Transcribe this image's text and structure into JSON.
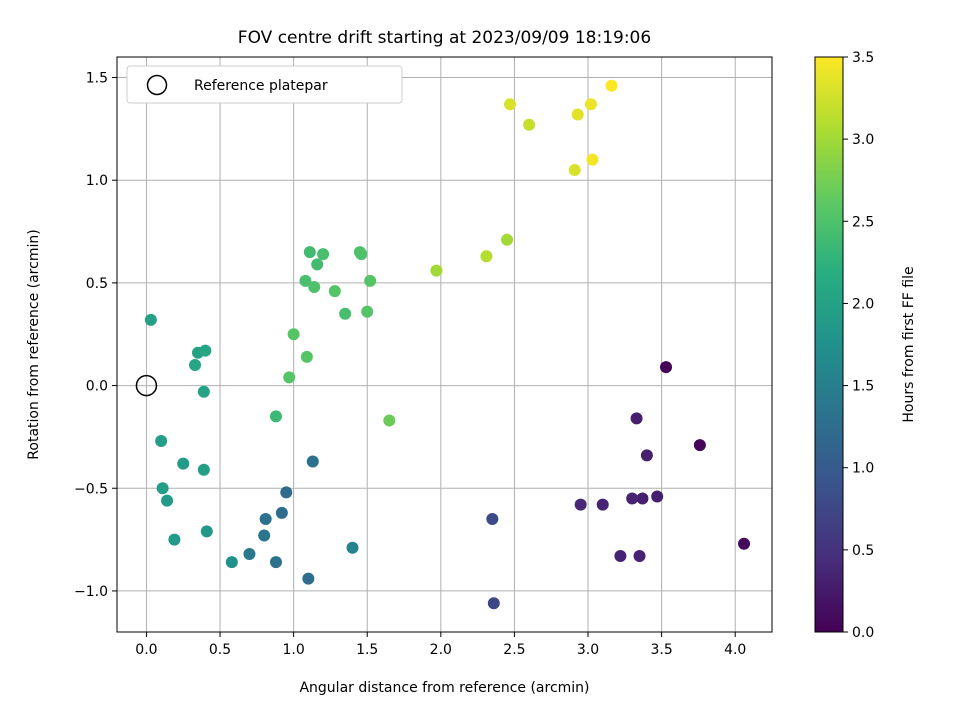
{
  "chart_data": {
    "type": "scatter",
    "title": "FOV centre drift starting at 2023/09/09 18:19:06",
    "xlabel": "Angular distance from reference (arcmin)",
    "ylabel": "Rotation from reference (arcmin)",
    "xlim": [
      -0.2,
      4.25
    ],
    "ylim": [
      -1.2,
      1.6
    ],
    "xticks": [
      0.0,
      0.5,
      1.0,
      1.5,
      2.0,
      2.5,
      3.0,
      3.5,
      4.0
    ],
    "xtick_labels": [
      "0.0",
      "0.5",
      "1.0",
      "1.5",
      "2.0",
      "2.5",
      "3.0",
      "3.5",
      "4.0"
    ],
    "yticks": [
      -1.0,
      -0.5,
      0.0,
      0.5,
      1.0,
      1.5
    ],
    "ytick_labels": [
      "−1.0",
      "−0.5",
      "0.0",
      "0.5",
      "1.0",
      "1.5"
    ],
    "grid": true,
    "legend": {
      "placement": "upper-left",
      "entries": [
        {
          "label": "Reference platepar",
          "marker": "open-circle"
        }
      ]
    },
    "reference_point": {
      "x": 0.0,
      "y": 0.0
    },
    "colorbar": {
      "label": "Hours from first FF file",
      "colormap": "viridis",
      "range": [
        0.0,
        3.5
      ],
      "ticks": [
        0.0,
        0.5,
        1.0,
        1.5,
        2.0,
        2.5,
        3.0,
        3.5
      ],
      "tick_labels": [
        "0.0",
        "0.5",
        "1.0",
        "1.5",
        "2.0",
        "2.5",
        "3.0",
        "3.5"
      ]
    },
    "points": [
      {
        "x": 3.53,
        "y": 0.09,
        "c": 0.02
      },
      {
        "x": 3.76,
        "y": -0.29,
        "c": 0.05
      },
      {
        "x": 4.06,
        "y": -0.77,
        "c": 0.08
      },
      {
        "x": 3.33,
        "y": -0.16,
        "c": 0.3
      },
      {
        "x": 3.4,
        "y": -0.34,
        "c": 0.3
      },
      {
        "x": 3.47,
        "y": -0.54,
        "c": 0.3
      },
      {
        "x": 3.37,
        "y": -0.55,
        "c": 0.32
      },
      {
        "x": 3.3,
        "y": -0.55,
        "c": 0.35
      },
      {
        "x": 3.1,
        "y": -0.58,
        "c": 0.35
      },
      {
        "x": 2.95,
        "y": -0.58,
        "c": 0.38
      },
      {
        "x": 3.22,
        "y": -0.83,
        "c": 0.35
      },
      {
        "x": 3.35,
        "y": -0.83,
        "c": 0.35
      },
      {
        "x": 2.35,
        "y": -0.65,
        "c": 0.8
      },
      {
        "x": 2.36,
        "y": -1.06,
        "c": 0.75
      },
      {
        "x": 0.95,
        "y": -0.52,
        "c": 1.2
      },
      {
        "x": 1.13,
        "y": -0.37,
        "c": 1.3
      },
      {
        "x": 0.92,
        "y": -0.62,
        "c": 1.25
      },
      {
        "x": 0.81,
        "y": -0.65,
        "c": 1.3
      },
      {
        "x": 0.8,
        "y": -0.73,
        "c": 1.35
      },
      {
        "x": 0.7,
        "y": -0.82,
        "c": 1.4
      },
      {
        "x": 0.88,
        "y": -0.86,
        "c": 1.3
      },
      {
        "x": 1.1,
        "y": -0.94,
        "c": 1.25
      },
      {
        "x": 1.4,
        "y": -0.79,
        "c": 1.55
      },
      {
        "x": 0.58,
        "y": -0.86,
        "c": 1.75
      },
      {
        "x": 0.19,
        "y": -0.75,
        "c": 1.9
      },
      {
        "x": 0.41,
        "y": -0.71,
        "c": 1.85
      },
      {
        "x": 0.14,
        "y": -0.56,
        "c": 1.9
      },
      {
        "x": 0.11,
        "y": -0.5,
        "c": 1.95
      },
      {
        "x": 0.25,
        "y": -0.38,
        "c": 1.9
      },
      {
        "x": 0.39,
        "y": -0.41,
        "c": 1.95
      },
      {
        "x": 0.1,
        "y": -0.27,
        "c": 1.95
      },
      {
        "x": 0.39,
        "y": -0.03,
        "c": 2.0
      },
      {
        "x": 0.33,
        "y": 0.1,
        "c": 2.05
      },
      {
        "x": 0.35,
        "y": 0.16,
        "c": 2.0
      },
      {
        "x": 0.4,
        "y": 0.17,
        "c": 2.05
      },
      {
        "x": 0.03,
        "y": 0.32,
        "c": 2.0
      },
      {
        "x": 0.88,
        "y": -0.15,
        "c": 2.35
      },
      {
        "x": 0.97,
        "y": 0.04,
        "c": 2.55
      },
      {
        "x": 1.09,
        "y": 0.14,
        "c": 2.55
      },
      {
        "x": 1.0,
        "y": 0.25,
        "c": 2.55
      },
      {
        "x": 1.08,
        "y": 0.51,
        "c": 2.45
      },
      {
        "x": 1.14,
        "y": 0.48,
        "c": 2.5
      },
      {
        "x": 1.16,
        "y": 0.59,
        "c": 2.4
      },
      {
        "x": 1.11,
        "y": 0.65,
        "c": 2.4
      },
      {
        "x": 1.2,
        "y": 0.64,
        "c": 2.45
      },
      {
        "x": 1.28,
        "y": 0.46,
        "c": 2.55
      },
      {
        "x": 1.35,
        "y": 0.35,
        "c": 2.45
      },
      {
        "x": 1.45,
        "y": 0.65,
        "c": 2.5
      },
      {
        "x": 1.46,
        "y": 0.64,
        "c": 2.5
      },
      {
        "x": 1.5,
        "y": 0.36,
        "c": 2.55
      },
      {
        "x": 1.52,
        "y": 0.51,
        "c": 2.55
      },
      {
        "x": 1.65,
        "y": -0.17,
        "c": 2.7
      },
      {
        "x": 1.97,
        "y": 0.56,
        "c": 3.0
      },
      {
        "x": 2.31,
        "y": 0.63,
        "c": 3.1
      },
      {
        "x": 2.45,
        "y": 0.71,
        "c": 3.0
      },
      {
        "x": 2.47,
        "y": 1.37,
        "c": 3.3
      },
      {
        "x": 2.6,
        "y": 1.27,
        "c": 3.2
      },
      {
        "x": 2.91,
        "y": 1.05,
        "c": 3.3
      },
      {
        "x": 2.93,
        "y": 1.32,
        "c": 3.35
      },
      {
        "x": 3.02,
        "y": 1.37,
        "c": 3.4
      },
      {
        "x": 3.03,
        "y": 1.1,
        "c": 3.45
      },
      {
        "x": 3.16,
        "y": 1.46,
        "c": 3.5
      }
    ]
  }
}
